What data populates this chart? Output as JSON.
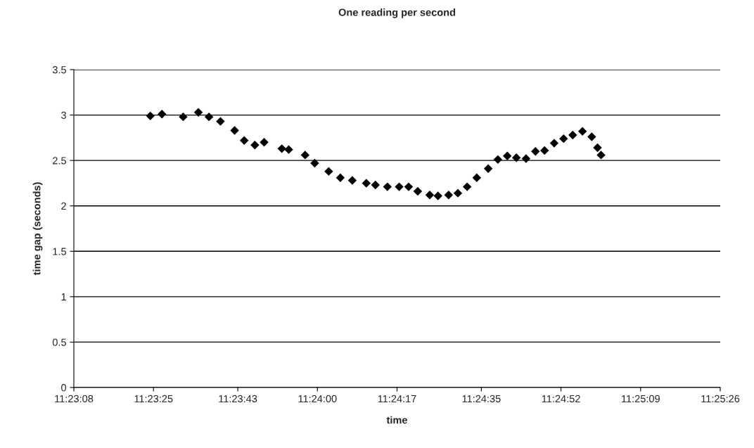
{
  "chart_data": {
    "type": "scatter",
    "title": "One reading per second",
    "xlabel": "time",
    "ylabel": "time gap (seconds)",
    "series": [
      {
        "color": "#000000",
        "x": [
          11.39009,
          11.39078,
          11.39204,
          11.39294,
          11.39357,
          11.39425,
          11.39509,
          11.39566,
          11.39629,
          11.39684,
          11.39789,
          11.3983,
          11.39927,
          11.39984,
          11.40067,
          11.40136,
          11.40207,
          11.4029,
          11.40344,
          11.40415,
          11.40485,
          11.40541,
          11.40595,
          11.40666,
          11.40715,
          11.40778,
          11.40833,
          11.40888,
          11.40945,
          11.41013,
          11.4107,
          11.41126,
          11.4118,
          11.41237,
          11.41293,
          11.41347,
          11.41404,
          11.4146,
          11.41514,
          11.41572,
          11.41627,
          11.41661,
          11.41682
        ],
        "values": [
          2.99,
          3.01,
          2.98,
          3.03,
          2.98,
          2.93,
          2.83,
          2.72,
          2.67,
          2.7,
          2.63,
          2.62,
          2.56,
          2.47,
          2.38,
          2.31,
          2.28,
          2.25,
          2.23,
          2.21,
          2.21,
          2.21,
          2.16,
          2.12,
          2.11,
          2.12,
          2.14,
          2.21,
          2.31,
          2.41,
          2.51,
          2.55,
          2.53,
          2.52,
          2.6,
          2.61,
          2.69,
          2.74,
          2.78,
          2.82,
          2.76,
          2.64,
          2.56
        ]
      }
    ],
    "xlim": [
      11.385556,
      11.423889
    ],
    "xticks": [
      {
        "value": 11.385556,
        "label": "11:23:08"
      },
      {
        "value": 11.390278,
        "label": "11:23:25"
      },
      {
        "value": 11.395278,
        "label": "11:23:43"
      },
      {
        "value": 11.4,
        "label": "11:24:00"
      },
      {
        "value": 11.404722,
        "label": "11:24:17"
      },
      {
        "value": 11.409722,
        "label": "11:24:35"
      },
      {
        "value": 11.414444,
        "label": "11:24:52"
      },
      {
        "value": 11.419167,
        "label": "11:25:09"
      },
      {
        "value": 11.423889,
        "label": "11:25:26"
      }
    ],
    "ylim": [
      0,
      3.5
    ],
    "yticks": [
      0,
      0.5,
      1,
      1.5,
      2,
      2.5,
      3,
      3.5
    ],
    "grid": "y",
    "marker": "diamond",
    "legend": false
  }
}
